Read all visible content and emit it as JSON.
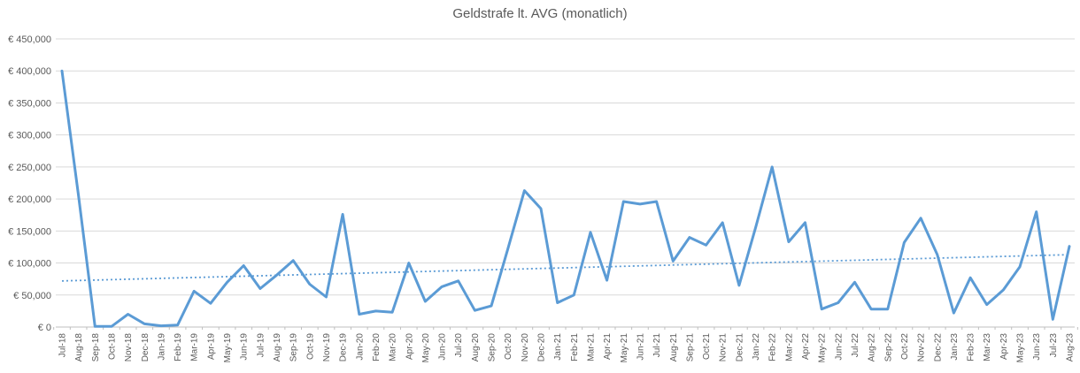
{
  "chart": {
    "title": "Geldstrafe lt. AVG (monatlich)"
  },
  "chart_data": {
    "type": "line",
    "title": "Geldstrafe lt. AVG (monatlich)",
    "xlabel": "",
    "ylabel": "",
    "ylim": [
      0,
      450000
    ],
    "y_tick_step": 50000,
    "grid": true,
    "legend_position": "none",
    "currency": "EUR",
    "colors": {
      "series_line": "#5B9BD5",
      "trendline": "#5B9BD5",
      "gridline": "#D9D9D9",
      "axis_line": "#BFBFBF",
      "text": "#595959"
    },
    "y_ticks": [
      {
        "value": 0,
        "label": "€ 0"
      },
      {
        "value": 50000,
        "label": "€ 50,000"
      },
      {
        "value": 100000,
        "label": "€ 100,000"
      },
      {
        "value": 150000,
        "label": "€ 150,000"
      },
      {
        "value": 200000,
        "label": "€ 200,000"
      },
      {
        "value": 250000,
        "label": "€ 250,000"
      },
      {
        "value": 300000,
        "label": "€ 300,000"
      },
      {
        "value": 350000,
        "label": "€ 350,000"
      },
      {
        "value": 400000,
        "label": "€ 400,000"
      },
      {
        "value": 450000,
        "label": "€ 450,000"
      }
    ],
    "categories": [
      "Jul-18",
      "Aug-18",
      "Sep-18",
      "Oct-18",
      "Nov-18",
      "Dec-18",
      "Jan-19",
      "Feb-19",
      "Mar-19",
      "Apr-19",
      "May-19",
      "Jun-19",
      "Jul-19",
      "Aug-19",
      "Sep-19",
      "Oct-19",
      "Nov-19",
      "Dec-19",
      "Jan-20",
      "Feb-20",
      "Mar-20",
      "Apr-20",
      "May-20",
      "Jun-20",
      "Jul-20",
      "Aug-20",
      "Sep-20",
      "Oct-20",
      "Nov-20",
      "Dec-20",
      "Jan-21",
      "Feb-21",
      "Mar-21",
      "Apr-21",
      "May-21",
      "Jun-21",
      "Jul-21",
      "Aug-21",
      "Sep-21",
      "Oct-21",
      "Nov-21",
      "Dec-21",
      "Jan-22",
      "Feb-22",
      "Mar-22",
      "Apr-22",
      "May-22",
      "Jun-22",
      "Jul-22",
      "Aug-22",
      "Sep-22",
      "Oct-22",
      "Nov-22",
      "Dec-22",
      "Jan-23",
      "Feb-23",
      "Mar-23",
      "Apr-23",
      "May-23",
      "Jun-23",
      "Jul-23",
      "Aug-23"
    ],
    "series": [
      {
        "name": "Geldstrafe lt. AVG (monatlich)",
        "style": "solid",
        "values": [
          400000,
          205000,
          1000,
          1000,
          20000,
          5000,
          2000,
          3000,
          56000,
          37000,
          70000,
          96000,
          60000,
          81000,
          104000,
          67000,
          47000,
          176000,
          20000,
          25000,
          23000,
          100000,
          40000,
          63000,
          72000,
          26000,
          33000,
          122000,
          213000,
          185000,
          38000,
          50000,
          148000,
          73000,
          196000,
          192000,
          196000,
          103000,
          140000,
          128000,
          163000,
          65000,
          155000,
          250000,
          133000,
          163000,
          28000,
          38000,
          70000,
          28000,
          28000,
          132000,
          170000,
          113000,
          22000,
          77000,
          35000,
          58000,
          94000,
          180000,
          12000,
          126000
        ]
      }
    ],
    "trendline": {
      "type": "linear",
      "style": "dotted",
      "start_value": 72000,
      "end_value": 113000
    }
  }
}
